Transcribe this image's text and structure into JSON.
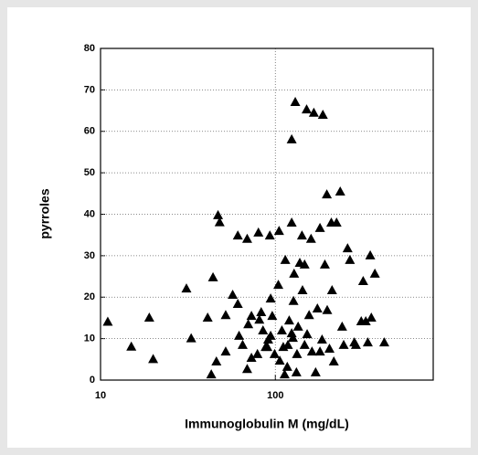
{
  "chart_data": {
    "type": "scatter",
    "x_label": "Immunoglobulin M (mg/dL)",
    "y_label": "pyrroles",
    "xscale": "log",
    "xlim": [
      10,
      800
    ],
    "xticks": [
      10,
      100
    ],
    "ylim": [
      0,
      80
    ],
    "yticks": [
      0,
      10,
      20,
      30,
      40,
      50,
      60,
      70,
      80
    ],
    "grid": true,
    "color": "#000000",
    "x": [
      11,
      15,
      19,
      20,
      31,
      33,
      41,
      44,
      47,
      48,
      43,
      46,
      52,
      52,
      57,
      61,
      61,
      62,
      65,
      69,
      69,
      70,
      73,
      73,
      80,
      81,
      83,
      85,
      88,
      91,
      93,
      94,
      96,
      99,
      104,
      105,
      106,
      109,
      111,
      113,
      114,
      117,
      120,
      124,
      124,
      126,
      127,
      128,
      130,
      132,
      133,
      135,
      138,
      142,
      143,
      147,
      151,
      152,
      156,
      160,
      162,
      166,
      170,
      174,
      180,
      185,
      187,
      192,
      197,
      198,
      204,
      209,
      211,
      216,
      224,
      235,
      241,
      246,
      259,
      267,
      283,
      289,
      310,
      318,
      329,
      338,
      349,
      354,
      371,
      420,
      79,
      90,
      118,
      147,
      180,
      94,
      124
    ],
    "values": [
      14,
      8,
      15,
      5,
      22,
      10,
      15,
      24.7,
      39.7,
      38,
      1.3,
      4.4,
      6.8,
      15.6,
      20.5,
      18.3,
      34.8,
      10.6,
      8.4,
      34,
      2.6,
      13.4,
      15.4,
      5.3,
      35.5,
      14.5,
      16.3,
      11.9,
      7.9,
      9.7,
      34.8,
      19.6,
      15.4,
      6.2,
      22.9,
      35.9,
      4.6,
      11.9,
      7.9,
      1.3,
      28.9,
      3.1,
      14.3,
      37.9,
      58,
      10.1,
      19,
      25.6,
      67,
      1.8,
      6.2,
      12.8,
      28.2,
      34.8,
      21.6,
      27.8,
      65.2,
      11,
      15.6,
      34,
      6.8,
      64.4,
      1.8,
      17.2,
      36.6,
      9.7,
      63.9,
      27.8,
      44.7,
      16.8,
      7.5,
      37.9,
      21.6,
      4.4,
      37.9,
      45.4,
      12.8,
      8.4,
      31.7,
      28.9,
      9,
      8.4,
      14.1,
      23.8,
      14.1,
      9,
      30,
      15,
      25.6,
      9,
      6.2,
      7.9,
      8.4,
      8.4,
      6.8,
      10.6,
      11.2
    ]
  }
}
